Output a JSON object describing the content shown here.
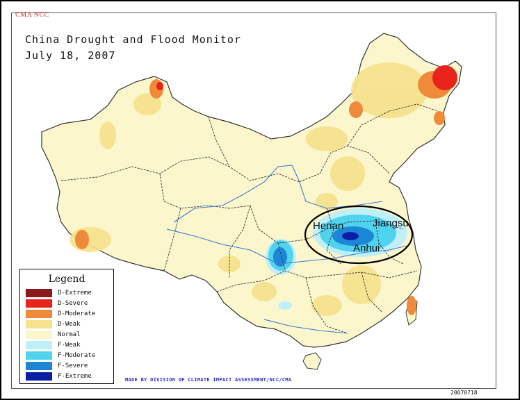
{
  "header": {
    "logo_text": "CMA NCC",
    "title_line1": "China Drought and Flood Monitor",
    "title_line2": "July 18, 2007"
  },
  "annotations": {
    "province_labels": [
      "Henan",
      "Jiangsu",
      "Anhui"
    ]
  },
  "legend": {
    "title": "Legend",
    "items": [
      {
        "label": "D-Extreme",
        "color": "#8b1a1a"
      },
      {
        "label": "D-Severe",
        "color": "#e8231c"
      },
      {
        "label": "D-Moderate",
        "color": "#ef8a3a"
      },
      {
        "label": "D-Weak",
        "color": "#f6e28c"
      },
      {
        "label": "Normal",
        "color": "#fbf6cc"
      },
      {
        "label": "F-Weak",
        "color": "#bfeff7"
      },
      {
        "label": "F-Moderate",
        "color": "#4fd3ee"
      },
      {
        "label": "F-Severe",
        "color": "#1e86d6"
      },
      {
        "label": "F-Extreme",
        "color": "#0a1fa6"
      }
    ]
  },
  "footer": {
    "credit": "MADE BY DIVISION OF CLIMATE IMPACT ASSESSMENT/NCC/CMA",
    "date_code": "20070718"
  },
  "colors": {
    "land": "#fbf6cc",
    "border": "#333333",
    "river": "#3a7bd5"
  }
}
